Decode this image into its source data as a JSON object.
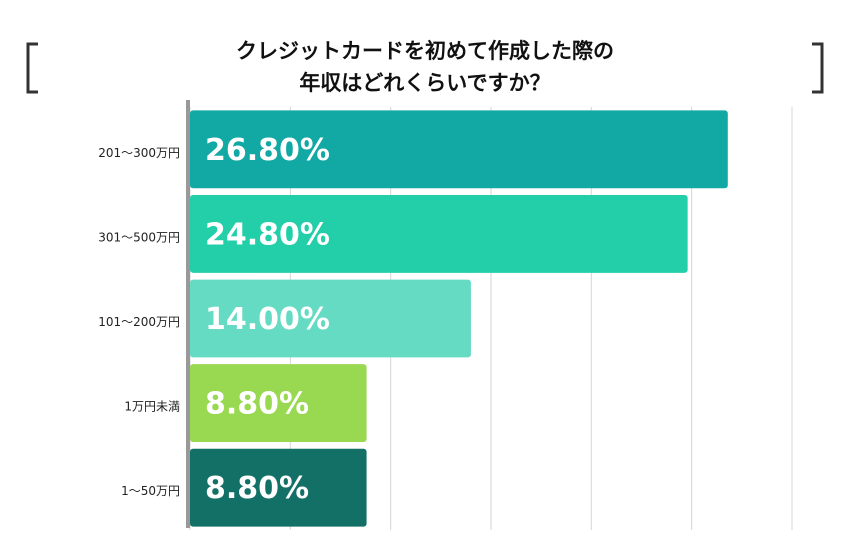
{
  "chart_data": {
    "type": "bar",
    "orientation": "horizontal",
    "title": [
      "クレジットカードを初めて作成した際の",
      "年収はどれくらいですか？"
    ],
    "categories": [
      "201～300万円",
      "301～500万円",
      "101～200万円",
      "1万円未満",
      "1～50万円"
    ],
    "values": [
      26.8,
      24.8,
      14.0,
      8.8,
      8.8
    ],
    "value_labels": [
      "26.80%",
      "24.80%",
      "14.00%",
      "8.80%",
      "8.80%"
    ],
    "colors": [
      "#12a8a3",
      "#22cfa9",
      "#66dbc4",
      "#99d851",
      "#137066"
    ],
    "xlim": [
      0,
      30
    ],
    "xticks": [
      0,
      5,
      10,
      15,
      20,
      25,
      30
    ],
    "grid": true
  }
}
